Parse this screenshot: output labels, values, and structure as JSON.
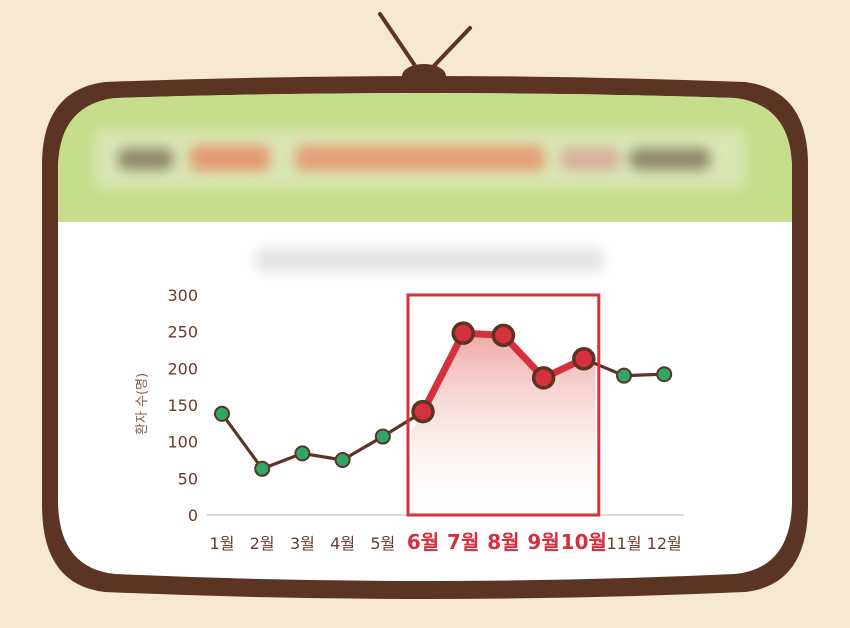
{
  "colors": {
    "background": "#f7e8d2",
    "tv_frame": "#5b3424",
    "header_band": "#c6dd8b",
    "screen": "#ffffff",
    "line": "#5b3424",
    "normal_point": "#2ea866",
    "highlight_point": "#d6303c",
    "highlight_text": "#d6303c",
    "axis_text": "#6b3a2a"
  },
  "chart_data": {
    "type": "line",
    "title": "",
    "xlabel": "",
    "ylabel": "환자 수(명)",
    "categories": [
      "1월",
      "2월",
      "3월",
      "4월",
      "5월",
      "6월",
      "7월",
      "8월",
      "9월",
      "10월",
      "11월",
      "12월"
    ],
    "values": [
      138,
      63,
      84,
      75,
      107,
      141,
      248,
      245,
      187,
      213,
      190,
      192
    ],
    "ylim": [
      0,
      300
    ],
    "yticks": [
      "0",
      "50",
      "100",
      "150",
      "200",
      "250",
      "300"
    ],
    "highlight_range": [
      "6월",
      "10월"
    ],
    "grid": false,
    "legend": "none"
  }
}
